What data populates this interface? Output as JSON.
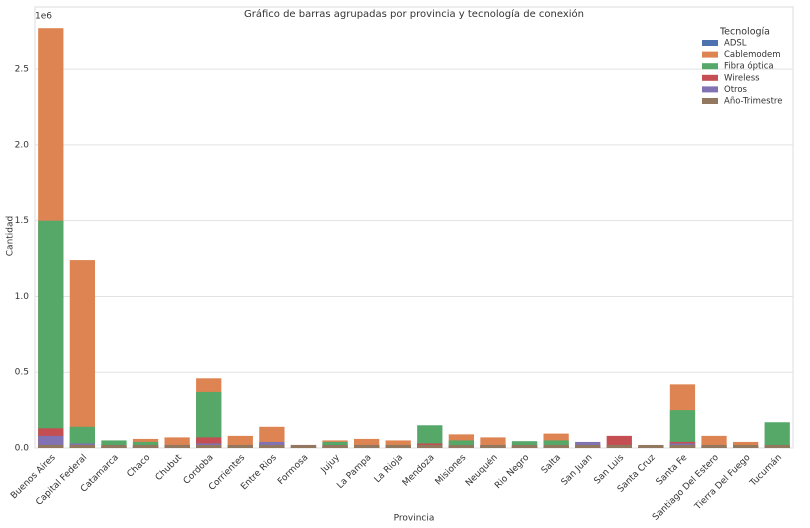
{
  "chart_data": {
    "type": "bar",
    "title": "Gráfico de barras agrupadas por provincia y tecnología de conexión",
    "x_label": "Provincia",
    "y_label": "Cantidad",
    "y_offset_label": "1e6",
    "legend_title": "Tecnología",
    "legend": "upper right",
    "grid": true,
    "categories": [
      "Buenos Aires",
      "Capital Federal",
      "Catamarca",
      "Chaco",
      "Chubut",
      "Cordoba",
      "Corrientes",
      "Entre Rios",
      "Formosa",
      "Jujuy",
      "La Pampa",
      "La Rioja",
      "Mendoza",
      "Misiones",
      "Neuquén",
      "Rio Negro",
      "Salta",
      "San Juan",
      "San Luis",
      "Santa Cruz",
      "Santa Fe",
      "Santiago Del Estero",
      "Tierra Del Fuego",
      "Tucumán"
    ],
    "series": [
      {
        "name": "ADSL",
        "color": "#4c72b0",
        "values": [
          0.07,
          0.03,
          0.01,
          0.02,
          0.02,
          0.04,
          0.02,
          0.03,
          0.01,
          0.01,
          0.01,
          0.005,
          0.03,
          0.02,
          0.02,
          0.02,
          0.02,
          0.02,
          0.002,
          0.01,
          0.05,
          0.005,
          0.005,
          0.01
        ]
      },
      {
        "name": "Cablemodem",
        "color": "#dd8452",
        "values": [
          2.77,
          1.24,
          0.01,
          0.06,
          0.07,
          0.46,
          0.08,
          0.14,
          0.005,
          0.05,
          0.06,
          0.05,
          0.03,
          0.09,
          0.07,
          0.04,
          0.095,
          0.01,
          0.005,
          0.01,
          0.42,
          0.08,
          0.04,
          0.01
        ]
      },
      {
        "name": "Fibra óptica",
        "color": "#55a868",
        "values": [
          1.5,
          0.14,
          0.05,
          0.04,
          0.02,
          0.37,
          0.02,
          0.03,
          0.01,
          0.04,
          0.02,
          0.02,
          0.15,
          0.05,
          0.01,
          0.045,
          0.05,
          0.01,
          0.01,
          0.01,
          0.25,
          0.01,
          0.01,
          0.17
        ]
      },
      {
        "name": "Wireless",
        "color": "#c44e52",
        "values": [
          0.13,
          0.01,
          0.005,
          0.01,
          0.02,
          0.07,
          0.01,
          0.02,
          0.02,
          0.01,
          0.02,
          0.01,
          0.03,
          0.01,
          0.02,
          0.01,
          0.01,
          0.01,
          0.08,
          0.005,
          0.04,
          0.005,
          0.005,
          0.005
        ]
      },
      {
        "name": "Otros",
        "color": "#8172b3",
        "values": [
          0.08,
          0.03,
          0.002,
          0.005,
          0.01,
          0.03,
          0.005,
          0.04,
          0.002,
          0.005,
          0.005,
          0.003,
          0.01,
          0.005,
          0.005,
          0.01,
          0.005,
          0.04,
          0.003,
          0.005,
          0.03,
          0.002,
          0.002,
          0.003
        ]
      },
      {
        "name": "Año-Trimestre",
        "color": "#937860",
        "values": [
          0.02,
          0.02,
          0.02,
          0.02,
          0.02,
          0.02,
          0.02,
          0.02,
          0.02,
          0.02,
          0.02,
          0.02,
          0.02,
          0.02,
          0.02,
          0.02,
          0.02,
          0.02,
          0.02,
          0.02,
          0.02,
          0.02,
          0.02,
          0.02
        ]
      }
    ],
    "ylim": [
      0,
      2.91
    ],
    "yticks": [
      {
        "value": 0,
        "label": "0.0"
      },
      0.5,
      {
        "value": 1,
        "label": "1.0"
      },
      1.5,
      {
        "value": 2,
        "label": "2.0"
      },
      2.5
    ]
  }
}
